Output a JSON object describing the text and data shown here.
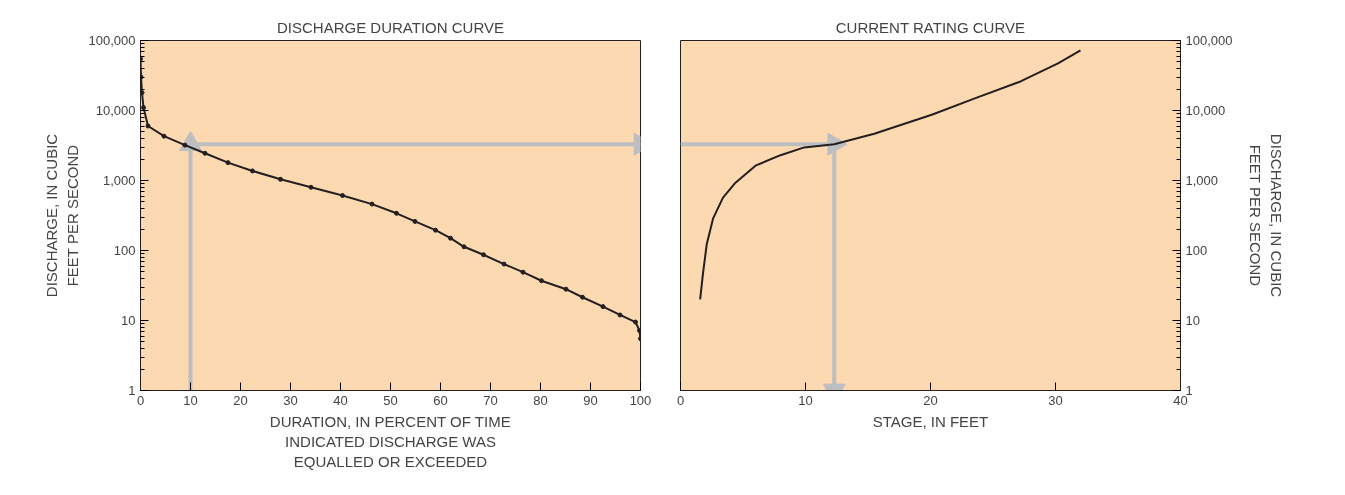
{
  "chart_data": [
    {
      "type": "line",
      "title": "DISCHARGE DURATION CURVE",
      "xlabel": "DURATION, IN PERCENT OF TIME\nINDICATED DISCHARGE WAS\nEQUALLED OR EXCEEDED",
      "ylabel": "DISCHARGE, IN CUBIC\nFEET PER SECOND",
      "log": "y",
      "grid": false,
      "marker": "circle",
      "xlim": [
        0,
        100
      ],
      "xticks": [
        0,
        10,
        20,
        30,
        40,
        50,
        60,
        70,
        80,
        90,
        100
      ],
      "ylim": [
        1,
        100000
      ],
      "yticks": [
        1,
        10,
        100,
        {
          "value": 1000,
          "label": "1,000"
        },
        {
          "value": 10000,
          "label": "10,000"
        },
        {
          "value": 100000,
          "label": "100,000"
        }
      ],
      "series": [
        {
          "color": "#231f20",
          "x": [
            0,
            0.1,
            0.3,
            0.6,
            1.5,
            4.7,
            8.9,
            12.9,
            17.5,
            22.4,
            28,
            34.1,
            40.4,
            46.3,
            51.2,
            54.9,
            59,
            62,
            64.7,
            68.6,
            72.7,
            76.5,
            80.2,
            85.1,
            88.4,
            92.5,
            95.9,
            99,
            99.8,
            100
          ],
          "values": [
            55000,
            30000,
            18000,
            11000,
            6000,
            4300,
            3200,
            2450,
            1800,
            1370,
            1040,
            800,
            610,
            460,
            340,
            260,
            195,
            150,
            113,
            87,
            64,
            49,
            37,
            28,
            21.5,
            15.8,
            12,
            9.5,
            7.2,
            5.5
          ]
        },
        {
          "type": "line",
          "marker": "triangle",
          "line_style": "solid",
          "color": "#bcbec0",
          "x": [
            10,
            10
          ],
          "values": [
            1,
            3300
          ]
        },
        {
          "type": "line",
          "marker": "triangle",
          "line_style": "solid",
          "color": "#bcbec0",
          "x": [
            10,
            100
          ],
          "values": [
            3300,
            3300
          ]
        }
      ]
    },
    {
      "type": "line",
      "title": "CURRENT RATING CURVE",
      "xlabel": "STAGE, IN FEET",
      "y2label": "DISCHARGE, IN CUBIC\nFEET PER SECOND",
      "log": "y2",
      "grid": false,
      "xlim": [
        0,
        40
      ],
      "xticks": [
        0,
        10,
        20,
        30,
        40
      ],
      "y2lim": [
        1,
        100000
      ],
      "y2ticks": [
        1,
        10,
        100,
        {
          "value": 1000,
          "label": "1,000"
        },
        {
          "value": 10000,
          "label": "10,000"
        },
        {
          "value": 100000,
          "label": "100,000"
        }
      ],
      "series": [
        {
          "color": "#231f20",
          "axis": "y2",
          "x": [
            1.57,
            1.8,
            2.1,
            2.6,
            3.4,
            4.4,
            6,
            8,
            9.9,
            12.3,
            15.5,
            20.1,
            23.6,
            27.2,
            30.2,
            32
          ],
          "values": [
            20,
            47,
            123,
            285,
            570,
            930,
            1630,
            2300,
            2970,
            3300,
            4650,
            8700,
            15000,
            26000,
            47000,
            72000
          ]
        },
        {
          "type": "line",
          "marker": "triangle",
          "line_style": "solid",
          "color": "#bcbec0",
          "axis": "y2",
          "x": [
            0,
            12.3
          ],
          "values": [
            3300,
            3300
          ]
        },
        {
          "type": "line",
          "marker": "triangle",
          "line_style": "solid",
          "color": "#bcbec0",
          "axis": "y2",
          "x": [
            12.3,
            12.3
          ],
          "values": [
            3300,
            1
          ]
        }
      ]
    }
  ]
}
